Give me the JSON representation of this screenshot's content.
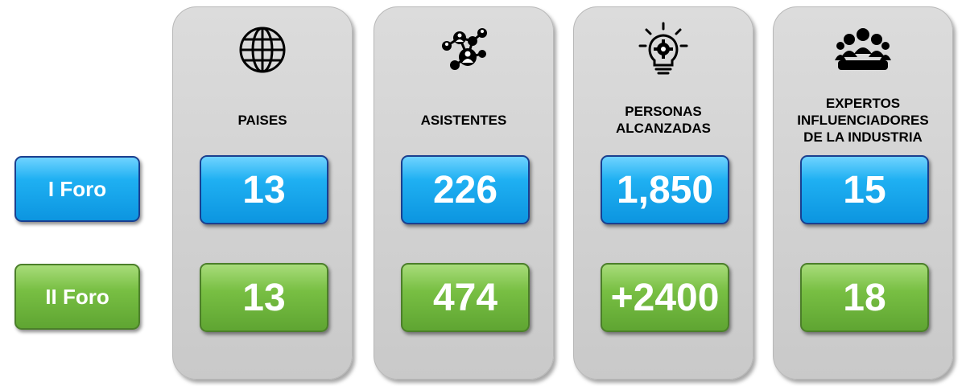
{
  "rows": [
    {
      "label": "I Foro",
      "color": "#1fb0f2"
    },
    {
      "label": "II Foro",
      "color": "#78bf43"
    }
  ],
  "cards": [
    {
      "title": "PAISES",
      "icon": "globe-icon",
      "values": [
        "13",
        "13"
      ]
    },
    {
      "title": "ASISTENTES",
      "icon": "network-people-icon",
      "values": [
        "226",
        "474"
      ]
    },
    {
      "title": "PERSONAS\nALCANZADAS",
      "icon": "lightbulb-gear-icon",
      "values": [
        "1,850",
        "+2400"
      ]
    },
    {
      "title": "EXPERTOS\nINFLUENCIADORES\nDE LA INDUSTRIA",
      "icon": "group-meeting-icon",
      "values": [
        "15",
        "18"
      ]
    }
  ]
}
